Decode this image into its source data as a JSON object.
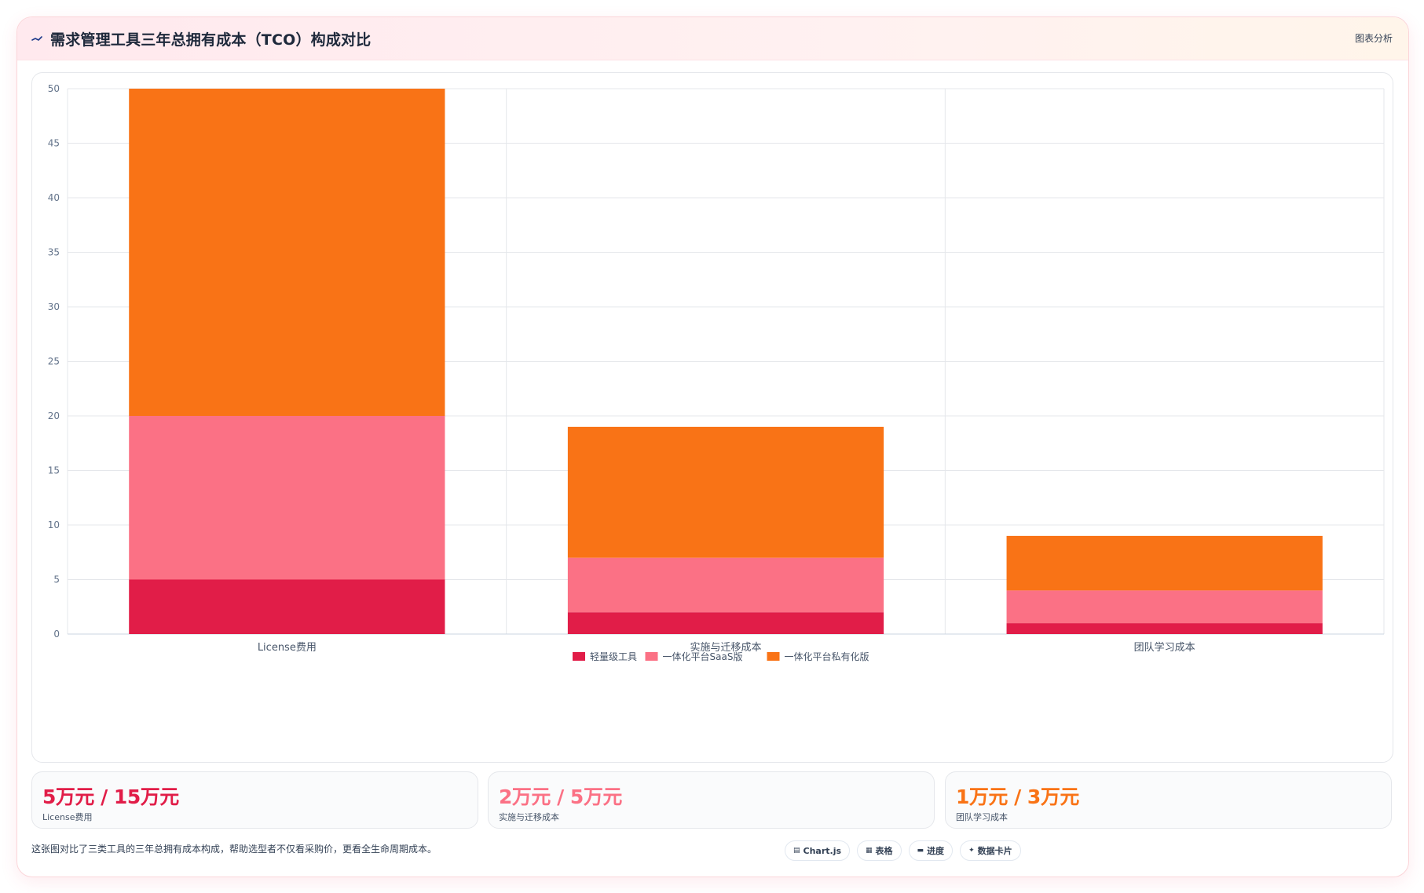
{
  "header": {
    "title": "需求管理工具三年总拥有成本（TCO）构成对比",
    "title_icon": "trend-line-icon",
    "analysis_label": "图表分析"
  },
  "colors": {
    "series": [
      "#e11d48",
      "#fb7185",
      "#f97316"
    ],
    "grid": "#e5e7eb",
    "axis": "#cbd5e1"
  },
  "chart_data": {
    "type": "bar",
    "stacked": true,
    "title": "需求管理工具三年总拥有成本（TCO）构成对比",
    "categories": [
      "License费用",
      "实施与迁移成本",
      "团队学习成本"
    ],
    "series": [
      {
        "name": "轻量级工具",
        "values": [
          5,
          2,
          1
        ]
      },
      {
        "name": "一体化平台SaaS版",
        "values": [
          15,
          5,
          3
        ]
      },
      {
        "name": "一体化平台私有化版",
        "values": [
          30,
          12,
          5
        ]
      }
    ],
    "xlabel": "",
    "ylabel": "",
    "ylim": [
      0,
      50
    ],
    "yticks": [
      0,
      5,
      10,
      15,
      20,
      25,
      30,
      35,
      40,
      45,
      50
    ],
    "grid": true,
    "legend_position": "bottom"
  },
  "stats": [
    {
      "value": "5万元 / 15万元",
      "label": "License费用",
      "color": "#e11d48"
    },
    {
      "value": "2万元 / 5万元",
      "label": "实施与迁移成本",
      "color": "#fb7185"
    },
    {
      "value": "1万元 / 3万元",
      "label": "团队学习成本",
      "color": "#f97316"
    }
  ],
  "footer": {
    "description": "这张图对比了三类工具的三年总拥有成本构成，帮助选型者不仅看采购价，更看全生命周期成本。",
    "chips": [
      {
        "label": "Chart.js",
        "icon": "chart-icon"
      },
      {
        "label": "表格",
        "icon": "table-icon"
      },
      {
        "label": "进度",
        "icon": "progress-icon"
      },
      {
        "label": "数据卡片",
        "icon": "sparkle-icon"
      }
    ]
  }
}
